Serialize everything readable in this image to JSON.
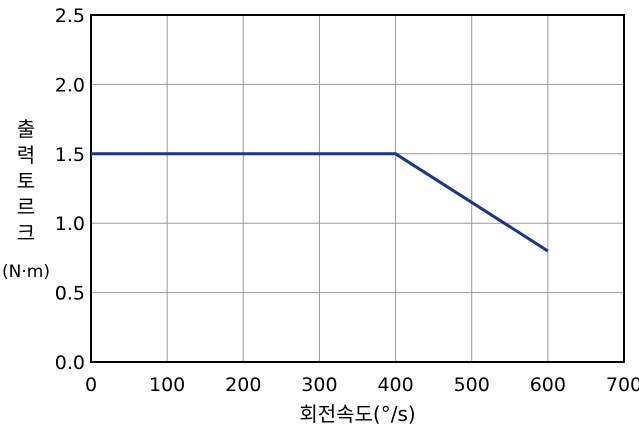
{
  "chart_data": {
    "type": "line",
    "xlabel": "회전속도(°/s)",
    "ylabel": "출력토르크",
    "ylabel_unit": "(N·m)",
    "xlim": [
      0,
      700
    ],
    "ylim": [
      0.0,
      2.5
    ],
    "x_ticks": [
      "0",
      "100",
      "200",
      "300",
      "400",
      "500",
      "600",
      "700"
    ],
    "y_ticks": [
      "0.0",
      "0.5",
      "1.0",
      "1.5",
      "2.0",
      "2.5"
    ],
    "grid": true,
    "series": [
      {
        "x": [
          0,
          400,
          600
        ],
        "y": [
          1.5,
          1.5,
          0.8
        ]
      }
    ],
    "colors": {
      "line": "#17378a",
      "grid": "#999999",
      "axis": "#000000"
    }
  }
}
